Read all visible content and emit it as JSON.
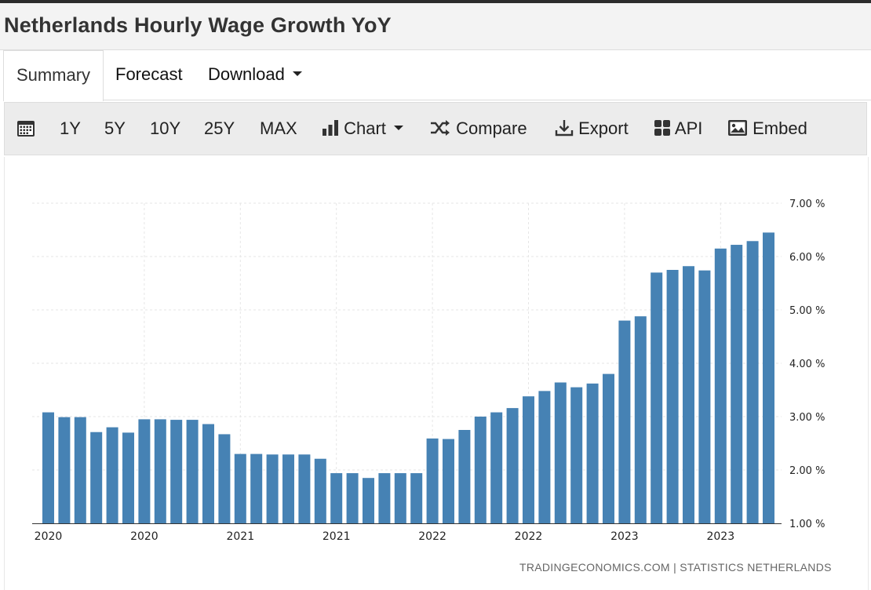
{
  "page": {
    "title": "Netherlands Hourly Wage Growth YoY"
  },
  "tabs": {
    "summary": "Summary",
    "forecast": "Forecast",
    "download": "Download"
  },
  "toolbar": {
    "range_1y": "1Y",
    "range_5y": "5Y",
    "range_10y": "10Y",
    "range_25y": "25Y",
    "range_max": "MAX",
    "chart": "Chart",
    "compare": "Compare",
    "export": "Export",
    "api": "API",
    "embed": "Embed"
  },
  "icons": {
    "calendar": "calendar-icon",
    "chart": "bar-chart-icon",
    "compare": "shuffle-icon",
    "export": "download-icon",
    "api": "grid-icon",
    "embed": "image-icon"
  },
  "colors": {
    "bar": "#4682b4",
    "grid": "#e6e6e6",
    "axis": "#333333"
  },
  "source": "TRADINGECONOMICS.COM | STATISTICS NETHERLANDS",
  "chart_data": {
    "type": "bar",
    "title": "",
    "xlabel": "",
    "ylabel": "",
    "ylim": [
      1.0,
      7.0
    ],
    "grid": true,
    "y_ticks": [
      1.0,
      2.0,
      3.0,
      4.0,
      5.0,
      6.0,
      7.0
    ],
    "y_tick_labels": [
      "1.00 %",
      "2.00 %",
      "3.00 %",
      "4.00 %",
      "5.00 %",
      "6.00 %",
      "7.00 %"
    ],
    "x_tick_labels": [
      {
        "label": "2020",
        "index": 0
      },
      {
        "label": "2020",
        "index": 6
      },
      {
        "label": "2021",
        "index": 12
      },
      {
        "label": "2021",
        "index": 18
      },
      {
        "label": "2022",
        "index": 24
      },
      {
        "label": "2022",
        "index": 30
      },
      {
        "label": "2023",
        "index": 36
      },
      {
        "label": "2023",
        "index": 42
      }
    ],
    "values": [
      3.08,
      2.99,
      2.99,
      2.71,
      2.8,
      2.7,
      2.95,
      2.95,
      2.94,
      2.94,
      2.86,
      2.67,
      2.3,
      2.3,
      2.29,
      2.29,
      2.29,
      2.21,
      1.94,
      1.94,
      1.85,
      1.94,
      1.94,
      1.94,
      2.59,
      2.58,
      2.75,
      3.0,
      3.08,
      3.16,
      3.38,
      3.48,
      3.64,
      3.55,
      3.62,
      3.8,
      4.8,
      4.88,
      5.7,
      5.75,
      5.82,
      5.74,
      6.15,
      6.22,
      6.29,
      6.45
    ]
  }
}
